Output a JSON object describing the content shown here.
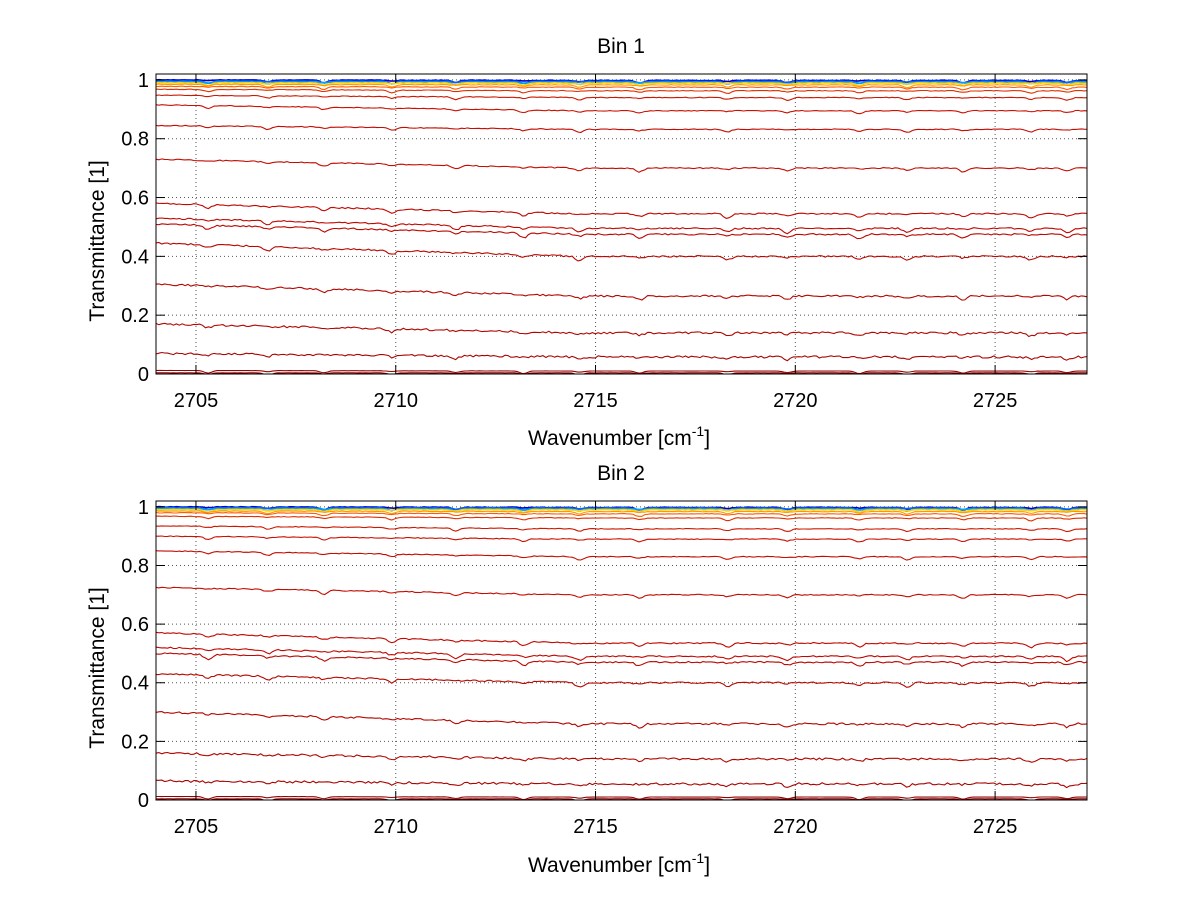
{
  "figure": {
    "background": "#ffffff"
  },
  "chart_data": [
    {
      "type": "line",
      "title": "Bin 1",
      "xlabel": "Wavenumber [cm",
      "xlabel_sup": "-1",
      "xlabel_end": "]",
      "ylabel": "Transmittance [1]",
      "xlim": [
        2704,
        2727.3
      ],
      "ylim": [
        0,
        1.02
      ],
      "xticks": [
        2705,
        2710,
        2715,
        2720,
        2725
      ],
      "xtick_labels": [
        "2705",
        "2710",
        "2715",
        "2720",
        "2725"
      ],
      "yticks": [
        0,
        0.2,
        0.4,
        0.6,
        0.8,
        1
      ],
      "ytick_labels": [
        "0",
        "0.2",
        "0.4",
        "0.6",
        "0.8",
        "1"
      ],
      "grid": true,
      "dips": [
        2705.3,
        2706.8,
        2708.2,
        2709.9,
        2711.5,
        2713.2,
        2714.6,
        2716.1,
        2718.3,
        2719.8,
        2721.6,
        2722.8,
        2724.2,
        2725.9,
        2726.8
      ],
      "series": [
        {
          "name": "s1",
          "start": 1.0,
          "end": 0.998,
          "color": "#0000cc"
        },
        {
          "name": "s2",
          "start": 0.996,
          "end": 0.995,
          "color": "#0066ff"
        },
        {
          "name": "s3",
          "start": 0.993,
          "end": 0.992,
          "color": "#00a0ff"
        },
        {
          "name": "s4",
          "start": 0.99,
          "end": 0.989,
          "color": "#ffd200"
        },
        {
          "name": "s5",
          "start": 0.985,
          "end": 0.983,
          "color": "#ff9900"
        },
        {
          "name": "s6",
          "start": 0.978,
          "end": 0.975,
          "color": "#ff5a00"
        },
        {
          "name": "s7",
          "start": 0.968,
          "end": 0.963,
          "color": "#e03000"
        },
        {
          "name": "s8",
          "start": 0.948,
          "end": 0.94,
          "color": "#cc1800"
        },
        {
          "name": "s9",
          "start": 0.915,
          "end": 0.895,
          "color": "#cc1000"
        },
        {
          "name": "s10",
          "start": 0.845,
          "end": 0.832,
          "color": "#c40c00"
        },
        {
          "name": "s11",
          "start": 0.73,
          "end": 0.7,
          "color": "#c40c00"
        },
        {
          "name": "s12",
          "start": 0.58,
          "end": 0.545,
          "color": "#c00800"
        },
        {
          "name": "s13",
          "start": 0.53,
          "end": 0.495,
          "color": "#c00800"
        },
        {
          "name": "s14",
          "start": 0.51,
          "end": 0.475,
          "color": "#bb0800"
        },
        {
          "name": "s15",
          "start": 0.445,
          "end": 0.4,
          "color": "#b80800"
        },
        {
          "name": "s16",
          "start": 0.305,
          "end": 0.265,
          "color": "#b40600"
        },
        {
          "name": "s17",
          "start": 0.17,
          "end": 0.14,
          "color": "#b00600"
        },
        {
          "name": "s18",
          "start": 0.07,
          "end": 0.058,
          "color": "#a80400"
        },
        {
          "name": "s19",
          "start": 0.012,
          "end": 0.01,
          "color": "#9a0000"
        },
        {
          "name": "s20",
          "start": 0.004,
          "end": 0.004,
          "color": "#880000"
        }
      ]
    },
    {
      "type": "line",
      "title": "Bin 2",
      "xlabel": "Wavenumber [cm",
      "xlabel_sup": "-1",
      "xlabel_end": "]",
      "ylabel": "Transmittance [1]",
      "xlim": [
        2704,
        2727.3
      ],
      "ylim": [
        0,
        1.02
      ],
      "xticks": [
        2705,
        2710,
        2715,
        2720,
        2725
      ],
      "xtick_labels": [
        "2705",
        "2710",
        "2715",
        "2720",
        "2725"
      ],
      "yticks": [
        0,
        0.2,
        0.4,
        0.6,
        0.8,
        1
      ],
      "ytick_labels": [
        "0",
        "0.2",
        "0.4",
        "0.6",
        "0.8",
        "1"
      ],
      "grid": true,
      "dips": [
        2705.3,
        2706.8,
        2708.2,
        2709.9,
        2711.5,
        2713.2,
        2714.6,
        2716.1,
        2718.3,
        2719.8,
        2721.6,
        2722.8,
        2724.2,
        2725.9,
        2726.8
      ],
      "series": [
        {
          "name": "s1",
          "start": 1.0,
          "end": 0.998,
          "color": "#0000cc"
        },
        {
          "name": "s2",
          "start": 0.997,
          "end": 0.996,
          "color": "#0066ff"
        },
        {
          "name": "s3",
          "start": 0.994,
          "end": 0.993,
          "color": "#00a0ff"
        },
        {
          "name": "s4",
          "start": 0.991,
          "end": 0.99,
          "color": "#ffd200"
        },
        {
          "name": "s5",
          "start": 0.986,
          "end": 0.984,
          "color": "#ff9900"
        },
        {
          "name": "s6",
          "start": 0.98,
          "end": 0.976,
          "color": "#ff5a00"
        },
        {
          "name": "s7",
          "start": 0.968,
          "end": 0.962,
          "color": "#e03000"
        },
        {
          "name": "s8",
          "start": 0.935,
          "end": 0.925,
          "color": "#cc1800"
        },
        {
          "name": "s9",
          "start": 0.9,
          "end": 0.89,
          "color": "#cc1000"
        },
        {
          "name": "s10",
          "start": 0.85,
          "end": 0.83,
          "color": "#c40c00"
        },
        {
          "name": "s11",
          "start": 0.725,
          "end": 0.7,
          "color": "#c40c00"
        },
        {
          "name": "s12",
          "start": 0.57,
          "end": 0.535,
          "color": "#c00800"
        },
        {
          "name": "s13",
          "start": 0.52,
          "end": 0.49,
          "color": "#c00800"
        },
        {
          "name": "s14",
          "start": 0.5,
          "end": 0.47,
          "color": "#bb0800"
        },
        {
          "name": "s15",
          "start": 0.43,
          "end": 0.4,
          "color": "#b80800"
        },
        {
          "name": "s16",
          "start": 0.3,
          "end": 0.26,
          "color": "#b40600"
        },
        {
          "name": "s17",
          "start": 0.16,
          "end": 0.14,
          "color": "#b00600"
        },
        {
          "name": "s18",
          "start": 0.065,
          "end": 0.055,
          "color": "#a80400"
        },
        {
          "name": "s19",
          "start": 0.012,
          "end": 0.01,
          "color": "#9a0000"
        },
        {
          "name": "s20",
          "start": 0.004,
          "end": 0.004,
          "color": "#880000"
        }
      ]
    }
  ]
}
